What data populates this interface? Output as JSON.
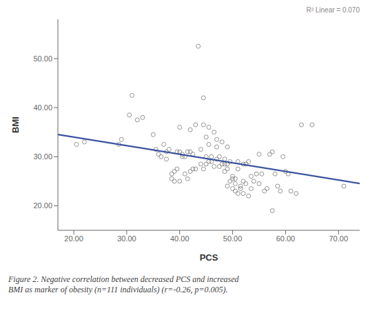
{
  "chart_data": {
    "type": "scatter",
    "xlabel": "PCS",
    "ylabel": "BMI",
    "xlim": [
      17,
      74
    ],
    "ylim": [
      15,
      58
    ],
    "xticks": [
      {
        "value": 20,
        "label": "20.00"
      },
      {
        "value": 30,
        "label": "30.00"
      },
      {
        "value": 40,
        "label": "40.00"
      },
      {
        "value": 50,
        "label": "50.00"
      },
      {
        "value": 60,
        "label": "60.00"
      },
      {
        "value": 70,
        "label": "70.00"
      }
    ],
    "yticks": [
      {
        "value": 20,
        "label": "20.00"
      },
      {
        "value": 30,
        "label": "30.00"
      },
      {
        "value": 40,
        "label": "40.00"
      },
      {
        "value": 50,
        "label": "50.00"
      }
    ],
    "annotation": "R² Linear = 0.070",
    "caption": "Figure 2. Negative correlation between decreased PCS and increased\nBMI as marker of obesity (n=111 individuals) (r=-0.26, p=0.005).",
    "grid": false,
    "series": [
      {
        "type": "scatter",
        "marker": "circle",
        "color": "#888888",
        "x": [
          20.5,
          22.0,
          28.5,
          29.0,
          30.5,
          31.0,
          32.0,
          33.0,
          35.0,
          35.5,
          36.0,
          36.5,
          37.0,
          37.5,
          37.5,
          38.0,
          38.5,
          38.5,
          39.0,
          39.0,
          39.5,
          39.5,
          40.0,
          40.0,
          40.0,
          40.5,
          40.5,
          41.0,
          41.0,
          41.5,
          41.5,
          42.0,
          42.0,
          42.0,
          42.5,
          42.5,
          43.0,
          43.0,
          43.5,
          44.0,
          44.0,
          44.5,
          44.5,
          44.5,
          45.0,
          45.0,
          45.0,
          45.5,
          45.5,
          45.5,
          46.0,
          46.0,
          46.5,
          46.5,
          47.0,
          47.0,
          47.0,
          47.5,
          47.5,
          48.0,
          48.0,
          48.5,
          48.5,
          48.5,
          49.0,
          49.0,
          49.0,
          49.0,
          49.5,
          49.5,
          50.0,
          50.0,
          50.0,
          50.5,
          50.5,
          50.5,
          51.0,
          51.0,
          51.0,
          51.5,
          51.5,
          52.0,
          52.0,
          52.0,
          52.5,
          52.5,
          53.0,
          53.0,
          53.5,
          53.5,
          54.0,
          54.5,
          55.0,
          55.0,
          55.5,
          56.0,
          56.5,
          57.0,
          57.5,
          57.5,
          58.0,
          58.5,
          59.0,
          59.5,
          60.0,
          60.5,
          61.0,
          62.0,
          63.0,
          65.0,
          71.0
        ],
        "values": [
          32.5,
          33.0,
          32.5,
          33.5,
          38.5,
          42.5,
          37.5,
          38.0,
          34.5,
          31.5,
          30.5,
          30.0,
          32.5,
          31.0,
          29.5,
          31.5,
          25.5,
          26.5,
          27.0,
          25.0,
          27.5,
          31.0,
          25.0,
          31.0,
          36.0,
          30.0,
          30.5,
          26.5,
          30.0,
          25.5,
          31.0,
          27.0,
          31.0,
          35.5,
          27.5,
          30.5,
          36.5,
          27.5,
          52.5,
          28.5,
          31.5,
          27.5,
          36.5,
          42.0,
          28.5,
          30.0,
          34.0,
          29.0,
          32.5,
          36.0,
          29.0,
          30.0,
          28.0,
          35.0,
          29.5,
          32.0,
          33.5,
          28.0,
          30.0,
          28.5,
          33.0,
          27.0,
          28.5,
          29.5,
          24.0,
          27.5,
          28.5,
          32.0,
          25.0,
          29.0,
          23.5,
          25.5,
          26.0,
          23.0,
          24.5,
          25.5,
          22.5,
          27.5,
          29.0,
          23.5,
          24.0,
          22.5,
          25.0,
          28.5,
          24.5,
          28.5,
          22.0,
          29.0,
          23.5,
          26.0,
          25.0,
          26.5,
          24.5,
          30.5,
          26.5,
          23.0,
          23.5,
          30.5,
          19.0,
          31.0,
          26.5,
          24.0,
          23.0,
          30.0,
          27.0,
          26.5,
          23.0,
          22.5,
          36.5,
          36.5,
          24.0
        ]
      },
      {
        "type": "line",
        "color": "#3a52a0",
        "x": [
          17,
          74
        ],
        "values": [
          34.525,
          24.55
        ]
      }
    ]
  }
}
